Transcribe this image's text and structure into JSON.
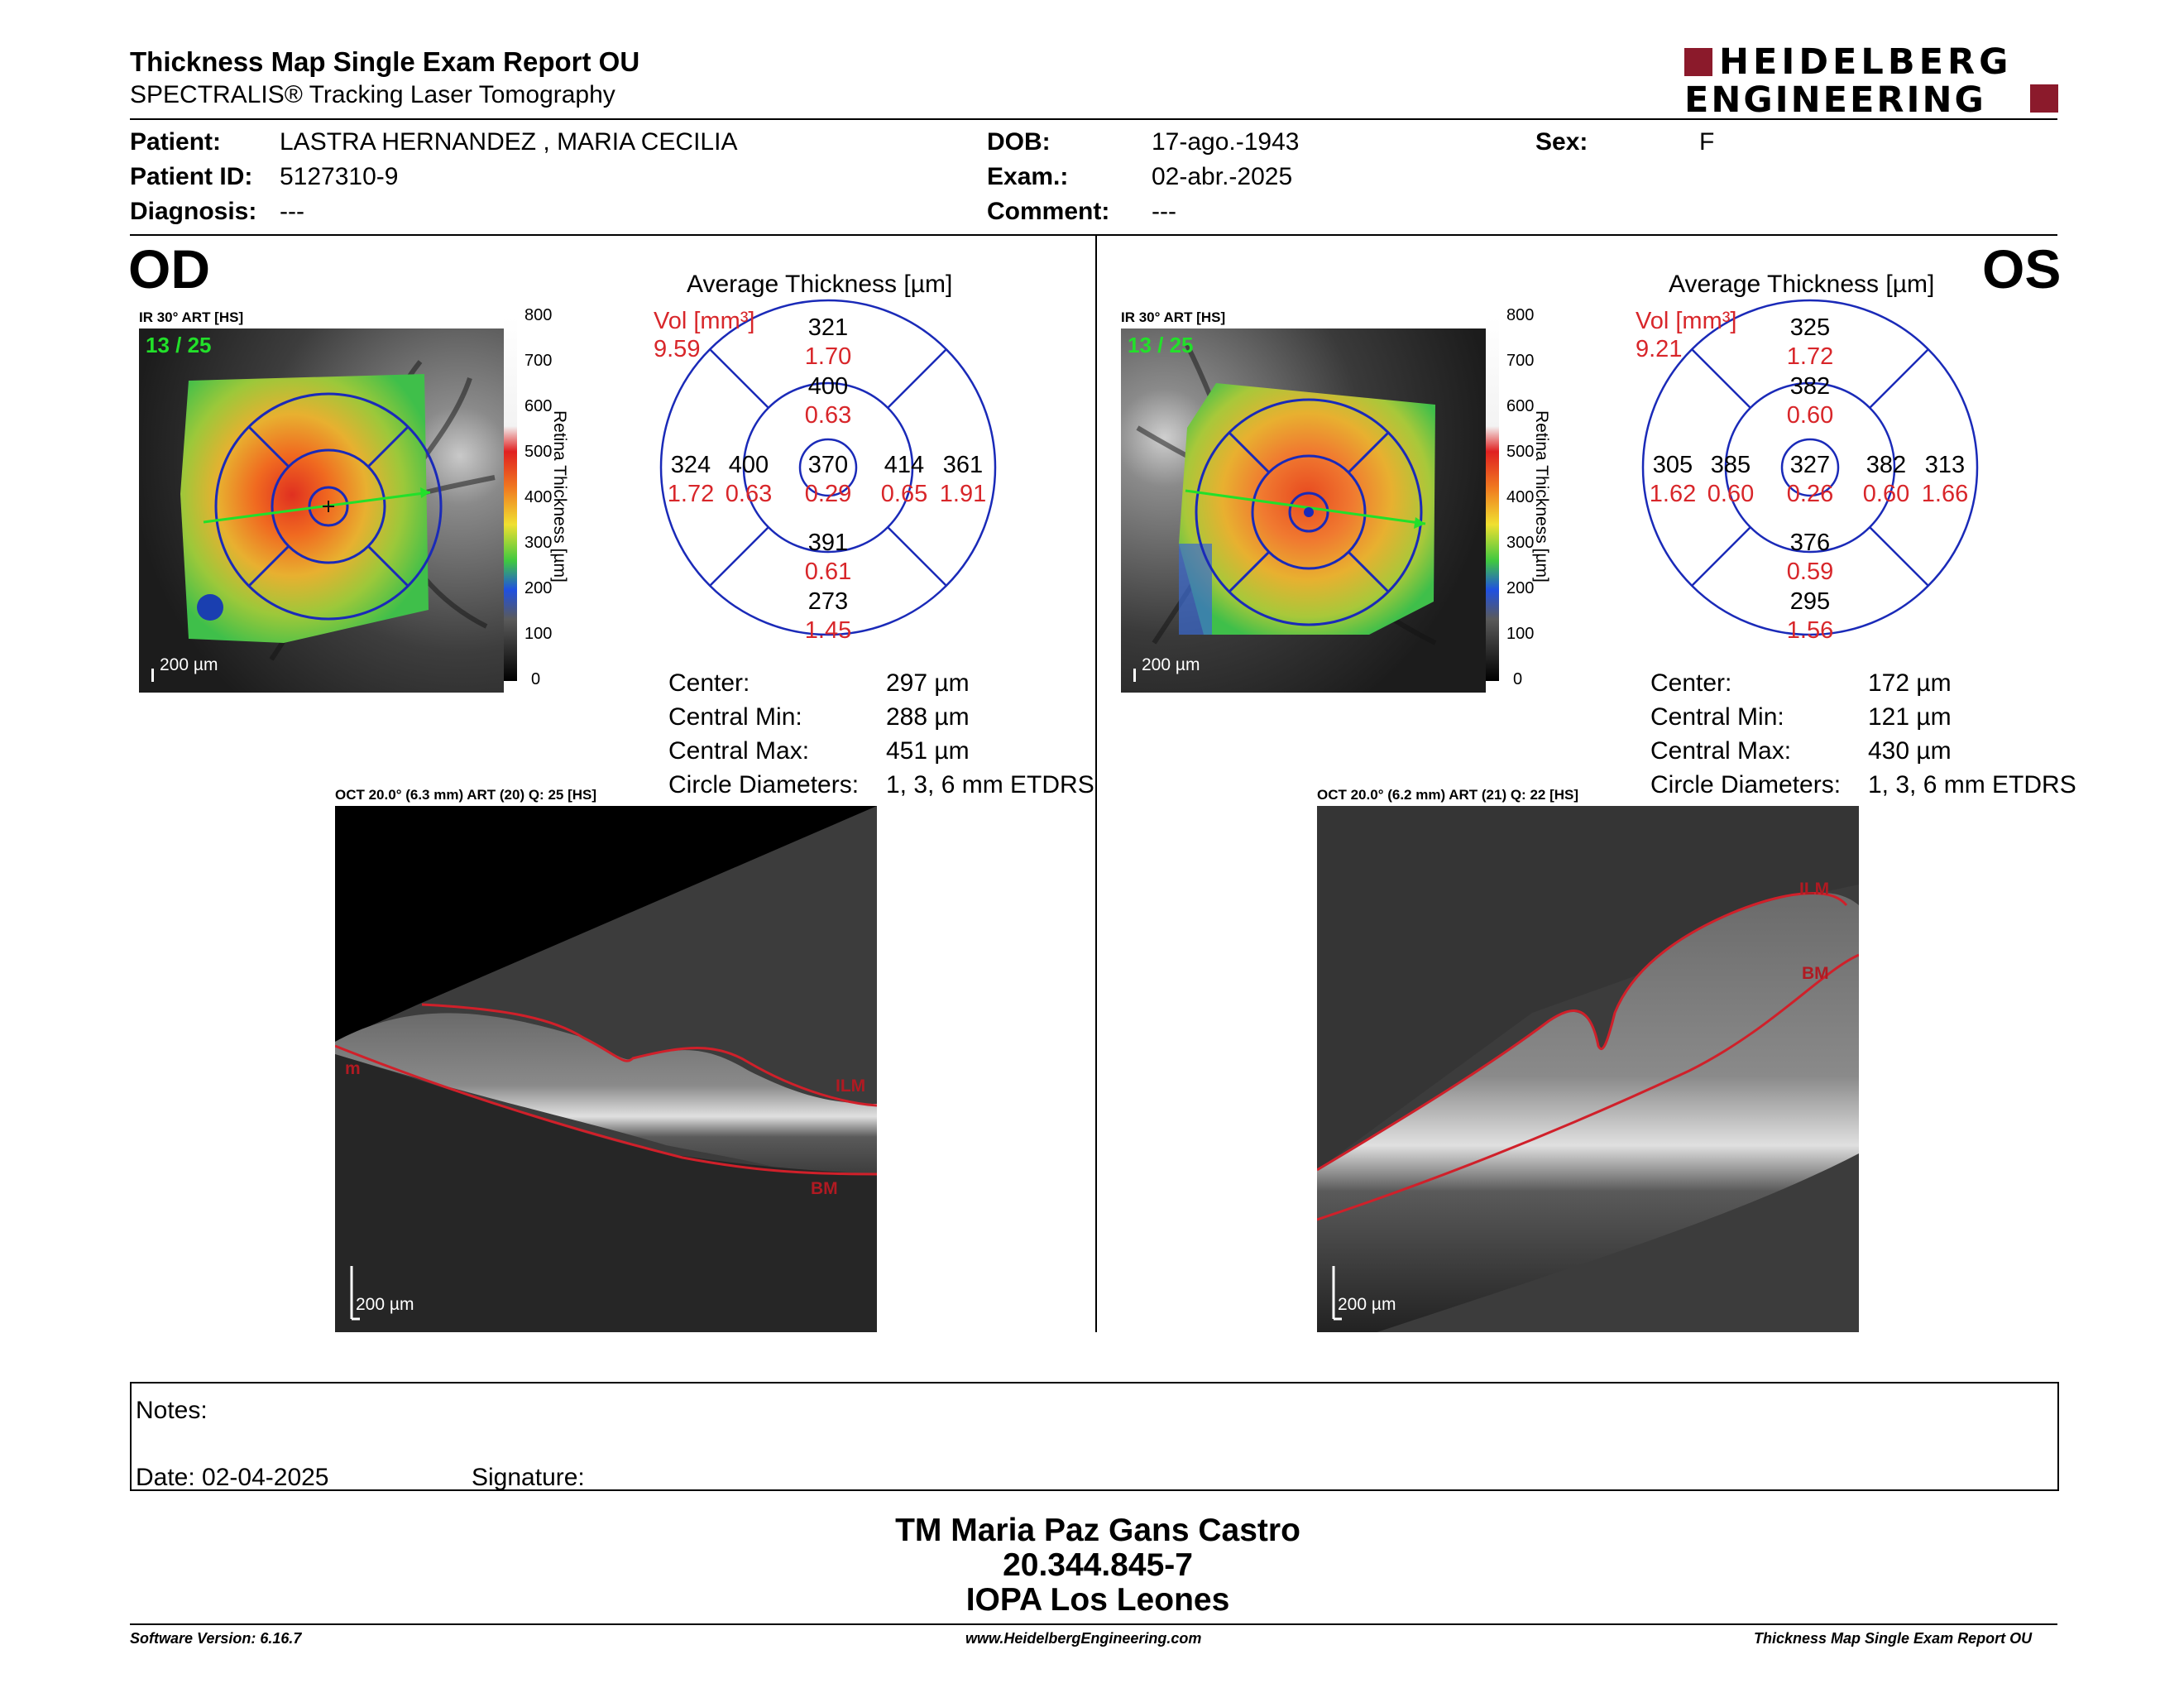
{
  "header": {
    "title": "Thickness Map Single Exam Report OU",
    "subtitle": "SPECTRALIS® Tracking Laser Tomography",
    "logo_line1": "HEIDELBERG",
    "logo_line2": "ENGINEERING"
  },
  "patient": {
    "patient_label": "Patient:",
    "patient_value": "LASTRA HERNANDEZ , MARIA CECILIA",
    "id_label": "Patient ID:",
    "id_value": "5127310-9",
    "diagnosis_label": "Diagnosis:",
    "diagnosis_value": "---",
    "dob_label": "DOB:",
    "dob_value": "17-ago.-1943",
    "exam_label": "Exam.:",
    "exam_value": "02-abr.-2025",
    "comment_label": "Comment:",
    "comment_value": "---",
    "sex_label": "Sex:",
    "sex_value": "F"
  },
  "od": {
    "eye": "OD",
    "ir_label": "IR 30° ART [HS]",
    "frame": "13 / 25",
    "scale": "200 µm",
    "colorbar_title": "Retina Thickness [µm]",
    "colorbar_ticks": [
      "800",
      "700",
      "600",
      "500",
      "400",
      "300",
      "200",
      "100",
      "0"
    ],
    "avg_title": "Average Thickness [µm]",
    "vol_label": "Vol [mm³]",
    "vol_value": "9.59",
    "sectors": {
      "center_t": "370",
      "center_v": "0.29",
      "inner_sup_t": "400",
      "inner_sup_v": "0.63",
      "inner_inf_t": "391",
      "inner_inf_v": "0.61",
      "inner_left_t": "400",
      "inner_left_v": "0.63",
      "inner_right_t": "414",
      "inner_right_v": "0.65",
      "outer_sup_t": "321",
      "outer_sup_v": "1.70",
      "outer_inf_t": "273",
      "outer_inf_v": "1.45",
      "outer_left_t": "324",
      "outer_left_v": "1.72",
      "outer_right_t": "361",
      "outer_right_v": "1.91"
    },
    "stats": {
      "center_label": "Center:",
      "center_value": "297 µm",
      "min_label": "Central Min:",
      "min_value": "288 µm",
      "max_label": "Central Max:",
      "max_value": "451 µm",
      "diam_label": "Circle Diameters:",
      "diam_value": "1, 3, 6 mm ETDRS"
    },
    "oct_label": "OCT 20.0° (6.3 mm) ART (20) Q: 25 [HS]",
    "oct_scale": "200 µm",
    "ilm": "ILM",
    "bm": "BM",
    "m": "m"
  },
  "os": {
    "eye": "OS",
    "ir_label": "IR 30° ART [HS]",
    "frame": "13 / 25",
    "scale": "200 µm",
    "colorbar_title": "Retina Thickness [µm]",
    "colorbar_ticks": [
      "800",
      "700",
      "600",
      "500",
      "400",
      "300",
      "200",
      "100",
      "0"
    ],
    "avg_title": "Average Thickness [µm]",
    "vol_label": "Vol [mm³]",
    "vol_value": "9.21",
    "sectors": {
      "center_t": "327",
      "center_v": "0.26",
      "inner_sup_t": "382",
      "inner_sup_v": "0.60",
      "inner_inf_t": "376",
      "inner_inf_v": "0.59",
      "inner_left_t": "385",
      "inner_left_v": "0.60",
      "inner_right_t": "382",
      "inner_right_v": "0.60",
      "outer_sup_t": "325",
      "outer_sup_v": "1.72",
      "outer_inf_t": "295",
      "outer_inf_v": "1.56",
      "outer_left_t": "305",
      "outer_left_v": "1.62",
      "outer_right_t": "313",
      "outer_right_v": "1.66"
    },
    "stats": {
      "center_label": "Center:",
      "center_value": "172 µm",
      "min_label": "Central Min:",
      "min_value": "121 µm",
      "max_label": "Central Max:",
      "max_value": "430 µm",
      "diam_label": "Circle Diameters:",
      "diam_value": "1, 3, 6 mm ETDRS"
    },
    "oct_label": "OCT 20.0° (6.2 mm) ART (21) Q: 22 [HS]",
    "oct_scale": "200 µm",
    "ilm": "ILM",
    "bm": "BM"
  },
  "notes": {
    "notes_label": "Notes:",
    "date_label": "Date: 02-04-2025",
    "signature_label": "Signature:"
  },
  "signatory": {
    "name": "TM Maria Paz Gans Castro",
    "rut": "20.344.845-7",
    "org": "IOPA Los Leones"
  },
  "footer": {
    "software": "Software Version: 6.16.7",
    "website": "www.HeidelbergEngineering.com",
    "report": "Thickness Map Single Exam Report OU"
  },
  "colors": {
    "logo_red": "#8b1a2b",
    "value_red": "#d8262a",
    "grid_blue": "#1a2ab8",
    "overlay_green": "#22e02a"
  }
}
